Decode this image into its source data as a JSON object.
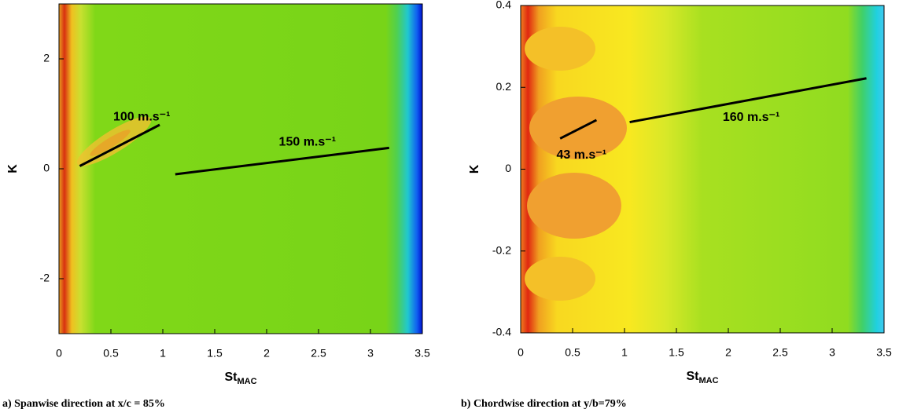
{
  "chart_data": [
    {
      "type": "contour",
      "caption": "a) Spanwise direction at x/c = 85%",
      "x_label": "St",
      "x_label_sub": "MAC",
      "y_label": "K",
      "xlim": [
        0,
        3.5
      ],
      "xticks": [
        0,
        0.5,
        1,
        1.5,
        2,
        2.5,
        3,
        3.5
      ],
      "ylim": [
        -3,
        3
      ],
      "yticks": [
        -2,
        0,
        2
      ],
      "lines": [
        {
          "label": "100 m.s⁻¹",
          "x": [
            0.2,
            0.97
          ],
          "y": [
            0.05,
            0.8
          ]
        },
        {
          "label": "150 m.s⁻¹",
          "x": [
            1.12,
            3.18
          ],
          "y": [
            -0.1,
            0.38
          ]
        }
      ]
    },
    {
      "type": "contour",
      "caption": "b) Chordwise direction at y/b=79%",
      "x_label": "St",
      "x_label_sub": "MAC",
      "y_label": "K",
      "xlim": [
        0,
        3.5
      ],
      "xticks": [
        0,
        0.5,
        1,
        1.5,
        2,
        2.5,
        3,
        3.5
      ],
      "ylim": [
        -0.4,
        0.4
      ],
      "yticks": [
        -0.4,
        -0.2,
        0,
        0.2,
        0.4
      ],
      "lines": [
        {
          "label": "43 m.s⁻¹",
          "x": [
            0.38,
            0.73
          ],
          "y": [
            0.075,
            0.12
          ]
        },
        {
          "label": "160 m.s⁻¹",
          "x": [
            1.05,
            3.33
          ],
          "y": [
            0.115,
            0.222
          ]
        }
      ]
    }
  ]
}
